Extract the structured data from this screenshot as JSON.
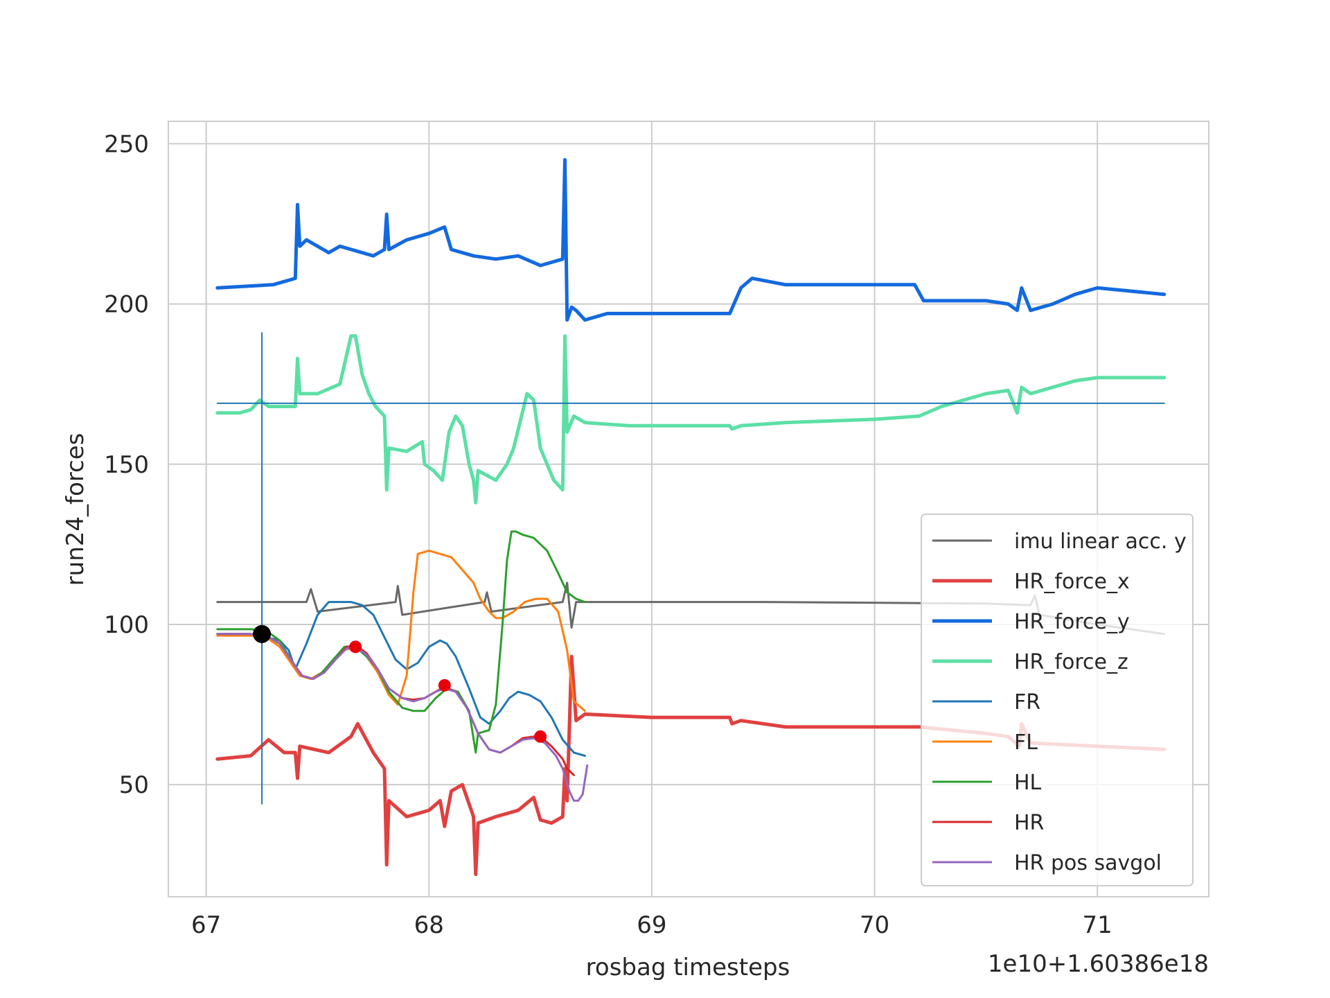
{
  "chart_data": {
    "type": "line",
    "title": "",
    "xlabel": "rosbag timesteps",
    "ylabel": "run24_forces",
    "x_offset_label": "1e10+1.60386e18",
    "xlim": [
      66.83,
      71.5
    ],
    "ylim": [
      15,
      257
    ],
    "x_ticks": [
      67,
      68,
      69,
      70,
      71
    ],
    "x_tick_labels": [
      "67",
      "68",
      "69",
      "70",
      "71"
    ],
    "y_ticks": [
      50,
      100,
      150,
      200,
      250
    ],
    "y_tick_labels": [
      "50",
      "100",
      "150",
      "200",
      "250"
    ],
    "grid": true,
    "legend_position": "lower-right",
    "series": [
      {
        "name": "imu linear acc. y",
        "color": "#696969",
        "width": 3,
        "x": [
          67.05,
          67.45,
          67.47,
          67.5,
          67.85,
          67.86,
          67.88,
          68.25,
          68.26,
          68.28,
          68.6,
          68.62,
          68.64,
          68.66,
          68.7,
          69.5,
          70.5,
          70.7,
          70.72,
          70.74,
          71.0,
          71.3
        ],
        "y": [
          107,
          107,
          111,
          104,
          107,
          112,
          103,
          107,
          110,
          104,
          107,
          113,
          99,
          107,
          107,
          107,
          106.5,
          106,
          109,
          103,
          100,
          97
        ]
      },
      {
        "name": "HR_force_x",
        "color": "#e04040",
        "width": 5,
        "x": [
          67.05,
          67.2,
          67.28,
          67.35,
          67.4,
          67.41,
          67.42,
          67.55,
          67.65,
          67.68,
          67.75,
          67.8,
          67.81,
          67.82,
          67.9,
          68.0,
          68.05,
          68.07,
          68.1,
          68.15,
          68.2,
          68.21,
          68.22,
          68.3,
          68.4,
          68.47,
          68.5,
          68.55,
          68.6,
          68.61,
          68.62,
          68.64,
          68.66,
          68.7,
          69.0,
          69.35,
          69.36,
          69.4,
          69.6,
          70.0,
          70.2,
          70.5,
          70.6,
          70.65,
          70.66,
          70.7,
          71.0,
          71.3
        ],
        "y": [
          58,
          59,
          64,
          60,
          60,
          52,
          62,
          60,
          65,
          69,
          60,
          55,
          25,
          45,
          40,
          42,
          45,
          37,
          48,
          50,
          40,
          22,
          38,
          40,
          42,
          46,
          39,
          38,
          40,
          55,
          45,
          90,
          70,
          72,
          71,
          71,
          69,
          70,
          68,
          68,
          68,
          66,
          65,
          62,
          69,
          63,
          62,
          61
        ]
      },
      {
        "name": "HR_force_y",
        "color": "#1469de",
        "width": 5,
        "x": [
          67.05,
          67.3,
          67.4,
          67.41,
          67.42,
          67.45,
          67.55,
          67.6,
          67.75,
          67.8,
          67.81,
          67.82,
          67.9,
          68.0,
          68.07,
          68.1,
          68.2,
          68.3,
          68.4,
          68.5,
          68.6,
          68.61,
          68.62,
          68.64,
          68.66,
          68.7,
          68.8,
          69.0,
          69.35,
          69.4,
          69.45,
          69.6,
          70.0,
          70.18,
          70.22,
          70.5,
          70.6,
          70.64,
          70.66,
          70.7,
          70.8,
          70.9,
          71.0,
          71.3
        ],
        "y": [
          205,
          206,
          208,
          231,
          218,
          220,
          216,
          218,
          215,
          217,
          228,
          217,
          220,
          222,
          224,
          217,
          215,
          214,
          215,
          212,
          214,
          245,
          195,
          199,
          198,
          195,
          197,
          197,
          197,
          205,
          208,
          206,
          206,
          206,
          201,
          201,
          200,
          198,
          205,
          198,
          200,
          203,
          205,
          203
        ]
      },
      {
        "name": "HR_force_z",
        "color": "#5cdfa5",
        "width": 5,
        "x": [
          67.05,
          67.15,
          67.2,
          67.24,
          67.28,
          67.32,
          67.4,
          67.41,
          67.42,
          67.5,
          67.6,
          67.65,
          67.67,
          67.7,
          67.73,
          67.76,
          67.8,
          67.81,
          67.82,
          67.9,
          67.97,
          67.98,
          68.02,
          68.06,
          68.09,
          68.12,
          68.15,
          68.18,
          68.2,
          68.21,
          68.22,
          68.3,
          68.35,
          68.38,
          68.44,
          68.47,
          68.5,
          68.56,
          68.6,
          68.61,
          68.62,
          68.65,
          68.7,
          68.9,
          69.35,
          69.36,
          69.4,
          69.6,
          70.0,
          70.2,
          70.3,
          70.5,
          70.6,
          70.64,
          70.66,
          70.7,
          70.9,
          71.0,
          71.3
        ],
        "y": [
          166,
          166,
          167,
          170,
          168,
          168,
          168,
          183,
          172,
          172,
          175,
          190,
          190,
          178,
          172,
          168,
          165,
          142,
          155,
          154,
          157,
          150,
          148,
          145,
          160,
          165,
          162,
          150,
          145,
          138,
          148,
          145,
          150,
          155,
          172,
          170,
          155,
          145,
          142,
          190,
          160,
          165,
          163,
          162,
          162,
          161,
          162,
          163,
          164,
          165,
          168,
          172,
          173,
          166,
          174,
          172,
          176,
          177,
          177
        ]
      },
      {
        "name": "FR",
        "color": "#1f77b4",
        "width": 3,
        "x": [
          67.05,
          67.2,
          67.27,
          67.33,
          67.37,
          67.4,
          67.45,
          67.5,
          67.55,
          67.6,
          67.65,
          67.7,
          67.75,
          67.8,
          67.85,
          67.9,
          67.95,
          68.0,
          68.05,
          68.08,
          68.12,
          68.18,
          68.23,
          68.27,
          68.32,
          68.36,
          68.4,
          68.45,
          68.5,
          68.55,
          68.6,
          68.65,
          68.7
        ],
        "y": [
          97,
          97,
          96,
          95,
          92,
          86,
          94,
          103,
          107,
          107,
          107,
          106,
          103,
          96,
          89,
          86,
          88,
          93,
          95,
          94,
          90,
          80,
          71,
          69,
          73,
          77,
          79,
          78,
          76,
          71,
          64,
          60,
          59
        ]
      },
      {
        "name": "FL",
        "color": "#ff7f0e",
        "width": 3,
        "x": [
          67.05,
          67.2,
          67.27,
          67.33,
          67.38,
          67.42,
          67.47,
          67.52,
          67.57,
          67.62,
          67.67,
          67.72,
          67.77,
          67.82,
          67.86,
          67.9,
          67.93,
          67.95,
          68.0,
          68.1,
          68.15,
          68.2,
          68.23,
          68.27,
          68.3,
          68.33,
          68.38,
          68.43,
          68.48,
          68.53,
          68.58,
          68.62,
          68.65,
          68.7
        ],
        "y": [
          96.5,
          96.5,
          96,
          93,
          88,
          84,
          83,
          85,
          89,
          92,
          93,
          90,
          85,
          78,
          75,
          84,
          110,
          122,
          123,
          121,
          117,
          113,
          108,
          104,
          102,
          102,
          104,
          107,
          108,
          108,
          104,
          92,
          76,
          73
        ]
      },
      {
        "name": "HL",
        "color": "#2ca02c",
        "width": 3,
        "x": [
          67.05,
          67.2,
          67.27,
          67.33,
          67.38,
          67.43,
          67.48,
          67.52,
          67.57,
          67.62,
          67.67,
          67.72,
          67.77,
          67.82,
          67.88,
          67.93,
          67.98,
          68.03,
          68.08,
          68.13,
          68.18,
          68.21,
          68.22,
          68.27,
          68.3,
          68.33,
          68.35,
          68.37,
          68.39,
          68.42,
          68.47,
          68.53,
          68.58,
          68.62,
          68.66,
          68.7
        ],
        "y": [
          98.5,
          98.5,
          98,
          95,
          89,
          84,
          83,
          85,
          89,
          93,
          93,
          90,
          86,
          79,
          74,
          73,
          73,
          77,
          80,
          79,
          73,
          60,
          66,
          67,
          75,
          100,
          120,
          129,
          129,
          128,
          127,
          123,
          116,
          110,
          108,
          107
        ]
      },
      {
        "name": "HR",
        "color": "#d62728",
        "width": 3,
        "x": [
          67.05,
          67.2,
          67.27,
          67.33,
          67.38,
          67.43,
          67.48,
          67.53,
          67.58,
          67.63,
          67.67,
          67.72,
          67.77,
          67.82,
          67.88,
          67.93,
          67.98,
          68.03,
          68.07,
          68.12,
          68.17,
          68.22,
          68.27,
          68.32,
          68.37,
          68.42,
          68.47,
          68.5,
          68.55,
          68.6,
          68.62,
          68.65
        ],
        "y": [
          97,
          97,
          96.5,
          94,
          89,
          84,
          83,
          85,
          89,
          93,
          93.5,
          91,
          86,
          80,
          77,
          76.5,
          77,
          79,
          80.5,
          79,
          74,
          66,
          61,
          60,
          62,
          64.5,
          65,
          65,
          62,
          58,
          55,
          53
        ]
      },
      {
        "name": "HR pos savgol",
        "color": "#9467bd",
        "width": 3,
        "x": [
          67.05,
          67.2,
          67.27,
          67.33,
          67.38,
          67.43,
          67.48,
          67.53,
          67.58,
          67.63,
          67.67,
          67.72,
          67.77,
          67.82,
          67.88,
          67.93,
          67.98,
          68.03,
          68.07,
          68.12,
          68.17,
          68.22,
          68.27,
          68.32,
          68.37,
          68.42,
          68.47,
          68.52,
          68.57,
          68.6,
          68.63,
          68.65,
          68.67,
          68.69,
          68.71
        ],
        "y": [
          97,
          97,
          96.5,
          94,
          89,
          84,
          83,
          85,
          89,
          92.5,
          93,
          90.5,
          86,
          80,
          77,
          76,
          77,
          79,
          80,
          79,
          74,
          66,
          61,
          60,
          62,
          64,
          64.5,
          63,
          59,
          55,
          48,
          45,
          45,
          47,
          56
        ]
      },
      {
        "name": "",
        "color": "#1f77b4",
        "width": 2,
        "legend": false,
        "x": [
          67.05,
          71.3
        ],
        "y": [
          169,
          169
        ]
      },
      {
        "name": "",
        "color": "#1f77b4",
        "width": 2,
        "legend": false,
        "x": [
          67.25,
          67.25
        ],
        "y": [
          44,
          191
        ]
      }
    ],
    "markers": [
      {
        "x": 67.25,
        "y": 97,
        "color": "#000000"
      },
      {
        "x": 67.67,
        "y": 93,
        "color": "#e8000b"
      },
      {
        "x": 68.07,
        "y": 81,
        "color": "#e8000b"
      },
      {
        "x": 68.5,
        "y": 65,
        "color": "#e8000b"
      }
    ],
    "legend_entries": [
      "imu linear acc. y",
      "HR_force_x",
      "HR_force_y",
      "HR_force_z",
      "FR",
      "FL",
      "HL",
      "HR",
      "HR pos savgol"
    ]
  }
}
